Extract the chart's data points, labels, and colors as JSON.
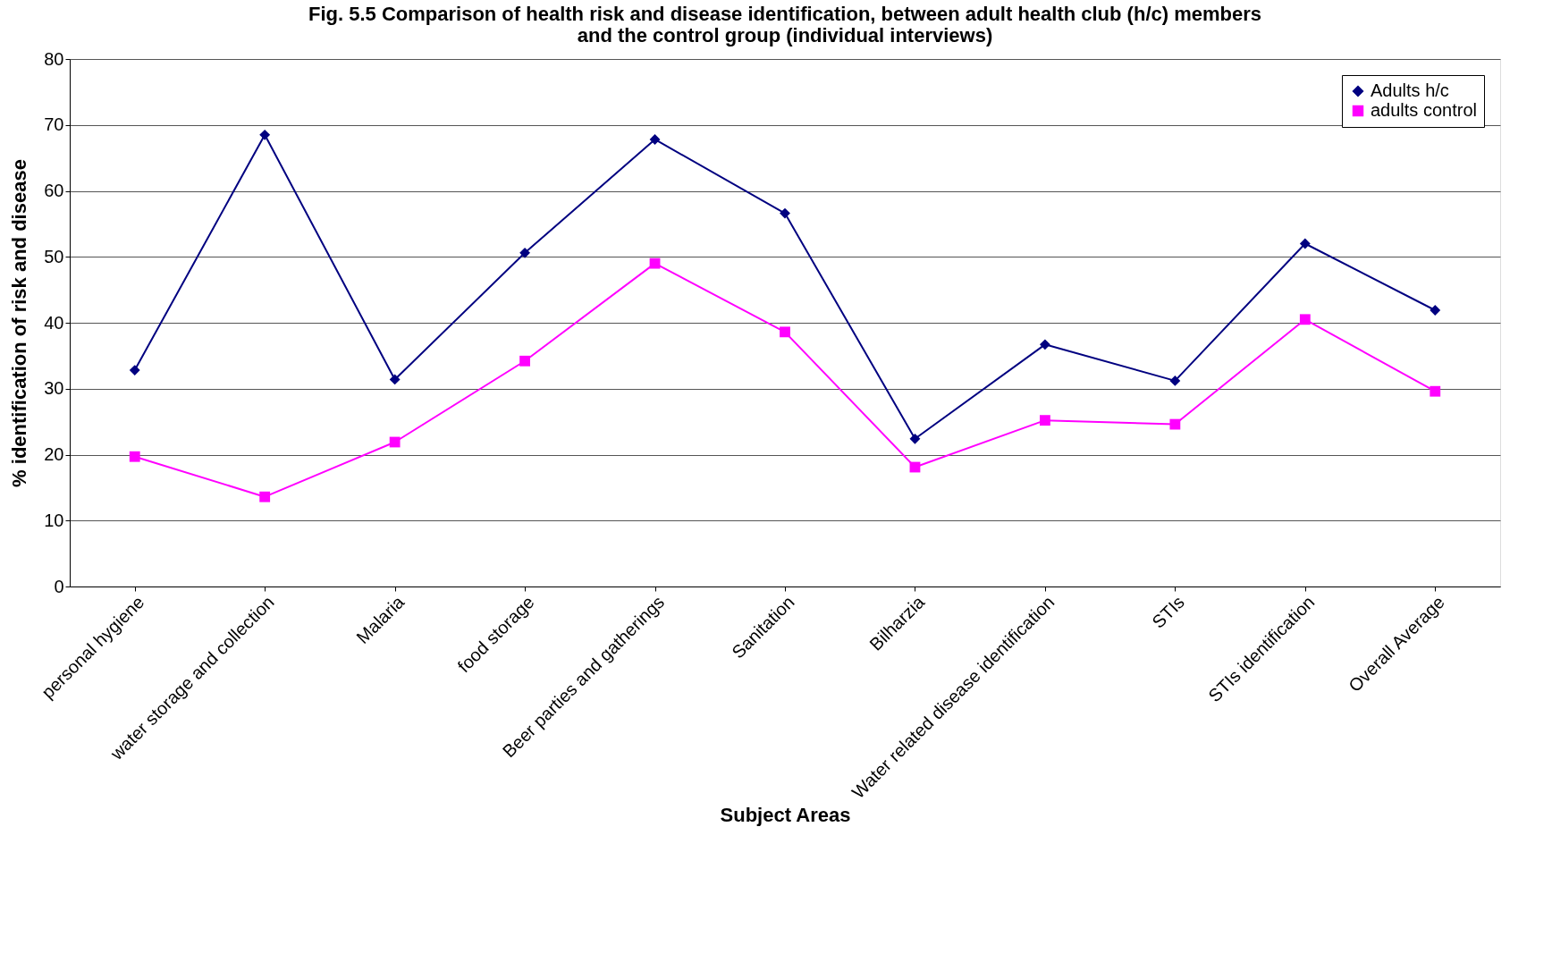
{
  "chart_data": {
    "type": "line",
    "title": [
      "Fig. 5.5 Comparison of health risk and disease identification, between adult health club (h/c) members",
      "and the control group (individual interviews)"
    ],
    "xlabel": "Subject Areas",
    "ylabel": "% identification of risk and disease",
    "categories": [
      "personal hygiene",
      "water storage and collection",
      "Malaria",
      "food storage",
      "Beer parties and gatherings",
      "Sanitation",
      "Bilharzia",
      "Water related disease identification",
      "STIs",
      "STIs identification",
      "Overall Average"
    ],
    "series": [
      {
        "name": "Adults h/c",
        "color": "#000080",
        "marker": "diamond",
        "values": [
          32.8,
          68.5,
          31.4,
          50.6,
          67.8,
          56.6,
          22.4,
          36.7,
          31.2,
          52.0,
          41.9
        ]
      },
      {
        "name": "adults control",
        "color": "#ff00ff",
        "marker": "square",
        "values": [
          19.7,
          13.6,
          21.9,
          34.2,
          49.0,
          38.6,
          18.1,
          25.2,
          24.6,
          40.5,
          29.6
        ]
      }
    ],
    "ylim": [
      0,
      80
    ],
    "yticks": [
      0,
      10,
      20,
      30,
      40,
      50,
      60,
      70,
      80
    ],
    "grid": "y",
    "legend": "top right"
  }
}
